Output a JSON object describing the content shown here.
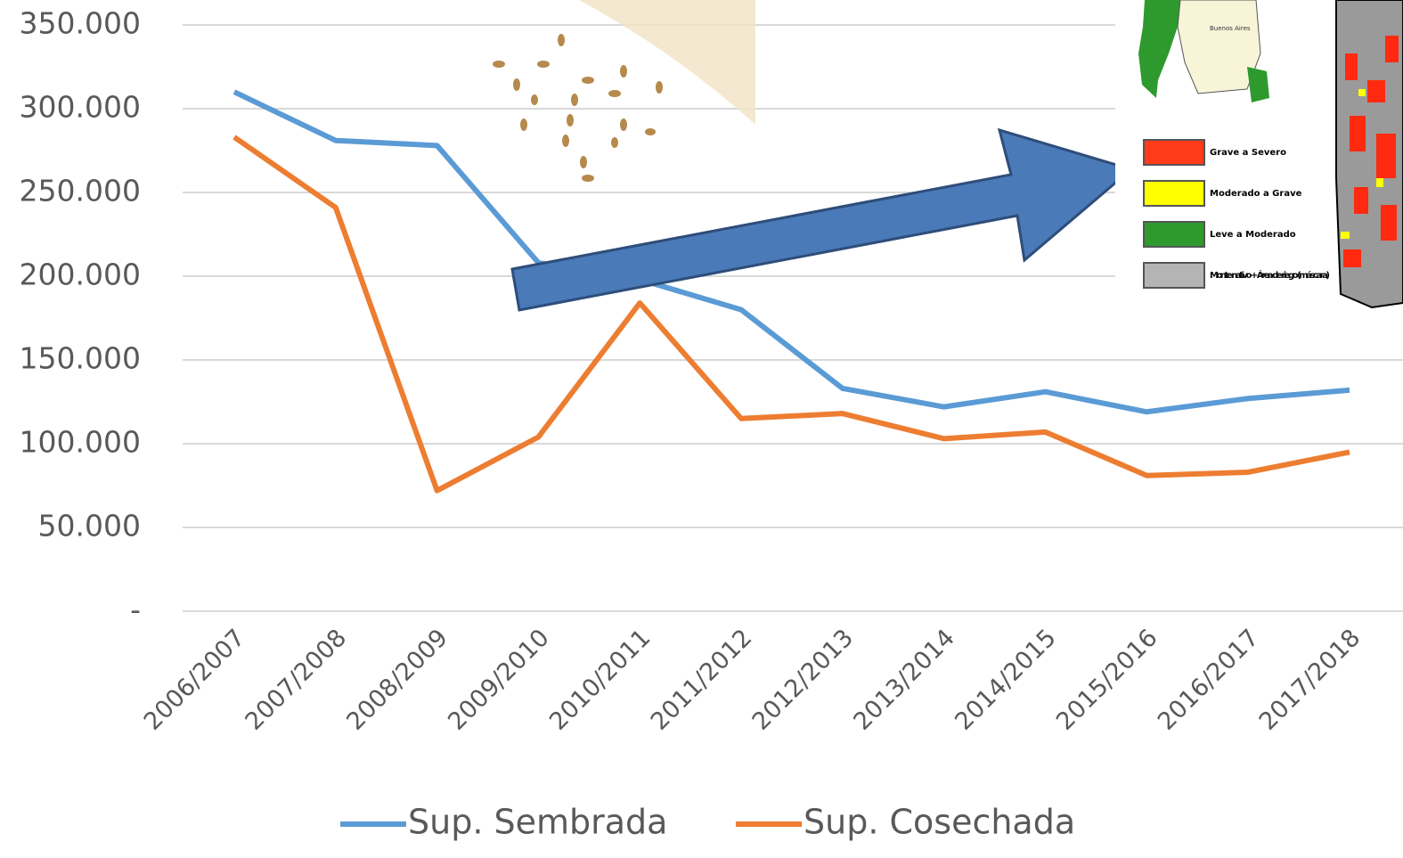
{
  "chart_data": {
    "type": "line",
    "categories": [
      "2006/2007",
      "2007/2008",
      "2008/2009",
      "2009/2010",
      "2010/2011",
      "2011/2012",
      "2012/2013",
      "2013/2014",
      "2014/2015",
      "2015/2016",
      "2016/2017",
      "2017/2018"
    ],
    "series": [
      {
        "name": "Sup. Sembrada",
        "color": "#5b9bd5",
        "values": [
          310000,
          281000,
          278000,
          208000,
          198000,
          180000,
          133000,
          122000,
          131000,
          119000,
          127000,
          132000
        ]
      },
      {
        "name": "Sup. Cosechada",
        "color": "#ed7d31",
        "values": [
          283000,
          241000,
          72000,
          104000,
          184000,
          115000,
          118000,
          103000,
          107000,
          81000,
          83000,
          95000
        ]
      }
    ],
    "ylim": [
      0,
      350000
    ],
    "yticks": [
      {
        "value": 0,
        "label": "-"
      },
      {
        "value": 50000,
        "label": "50.000"
      },
      {
        "value": 100000,
        "label": "100.000"
      },
      {
        "value": 150000,
        "label": "150.000"
      },
      {
        "value": 200000,
        "label": "200.000"
      },
      {
        "value": 250000,
        "label": "250.000"
      },
      {
        "value": 300000,
        "label": "300.000"
      },
      {
        "value": 350000,
        "label": "350.000"
      }
    ],
    "grid": true,
    "legend": "bottom"
  },
  "map_legend": [
    {
      "label": "Grave a Severo",
      "color": "#ff3b1a"
    },
    {
      "label": "Moderado a Grave",
      "color": "#ffff00"
    },
    {
      "label": "Leve a Moderado",
      "color": "#2e9a2e"
    },
    {
      "label": "Monte nativo + Área de riego (máscara)",
      "color": "#b4b4b4"
    }
  ]
}
